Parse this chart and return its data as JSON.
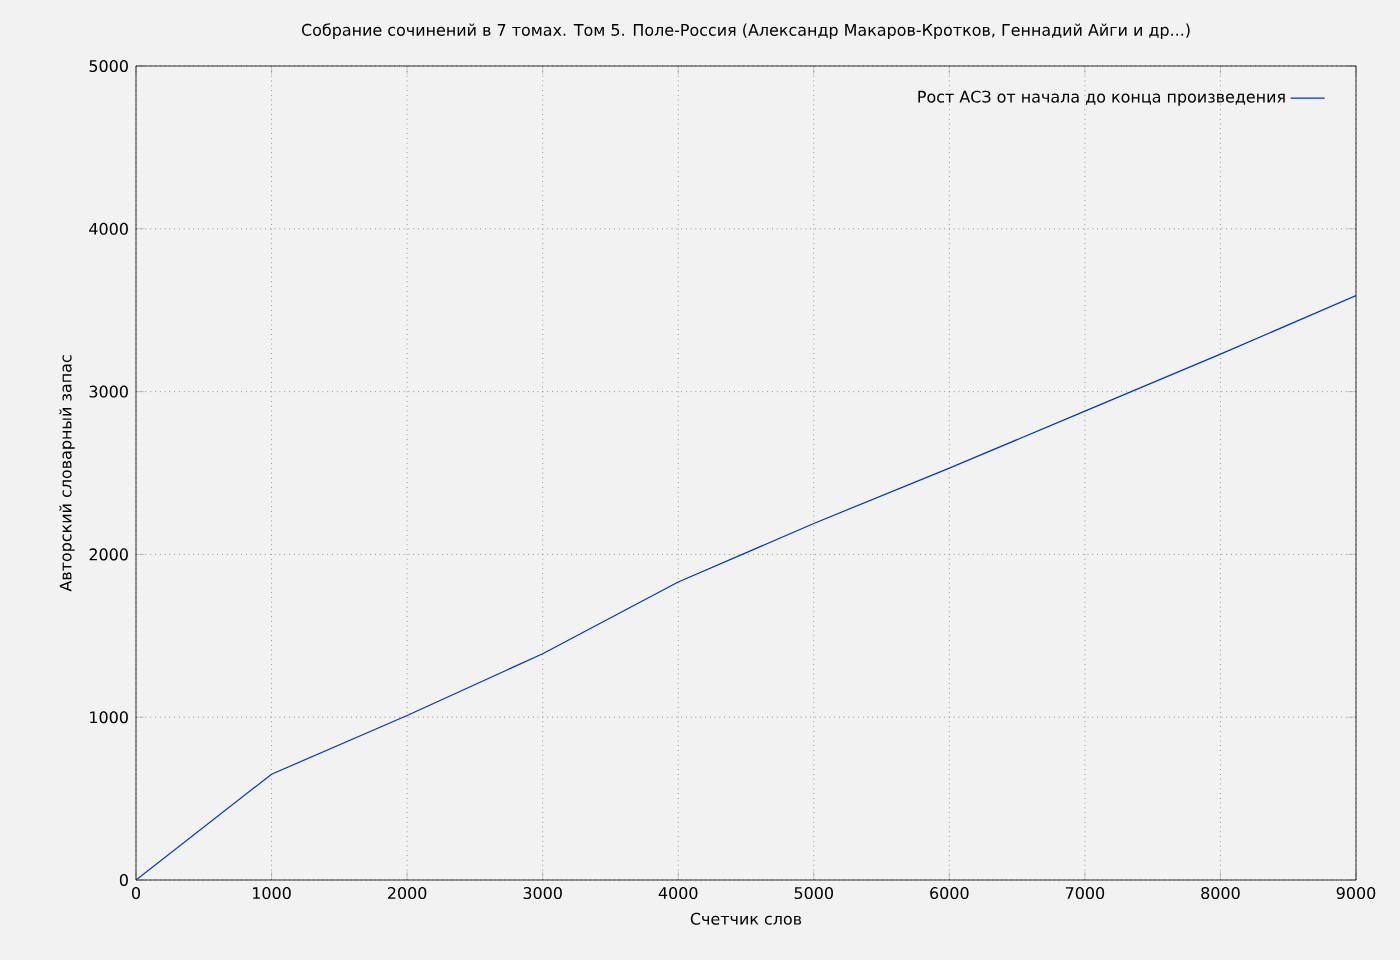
{
  "chart_data": {
    "type": "line",
    "title": "Собрание сочинений в 7 томах. Том 5. Поле-Россия (Александр Макаров-Кротков, Геннадий Айги и др...)",
    "xlabel": "Счетчик слов",
    "ylabel": "Авторский словарный запас",
    "x": [
      0,
      1000,
      2000,
      3000,
      4000,
      5000,
      6000,
      7000,
      8000,
      9000
    ],
    "series": [
      {
        "name": "Рост АСЗ от начала до конца произведения",
        "color": "#0033cc",
        "values": [
          0,
          650,
          1010,
          1390,
          1830,
          2190,
          2530,
          2880,
          3230,
          3590
        ]
      }
    ],
    "xlim": [
      0,
      9000
    ],
    "ylim": [
      0,
      5000
    ],
    "xticks": [
      0,
      1000,
      2000,
      3000,
      4000,
      5000,
      6000,
      7000,
      8000,
      9000
    ],
    "yticks": [
      0,
      1000,
      2000,
      3000,
      4000,
      5000
    ],
    "grid": true,
    "legend": "top right"
  }
}
